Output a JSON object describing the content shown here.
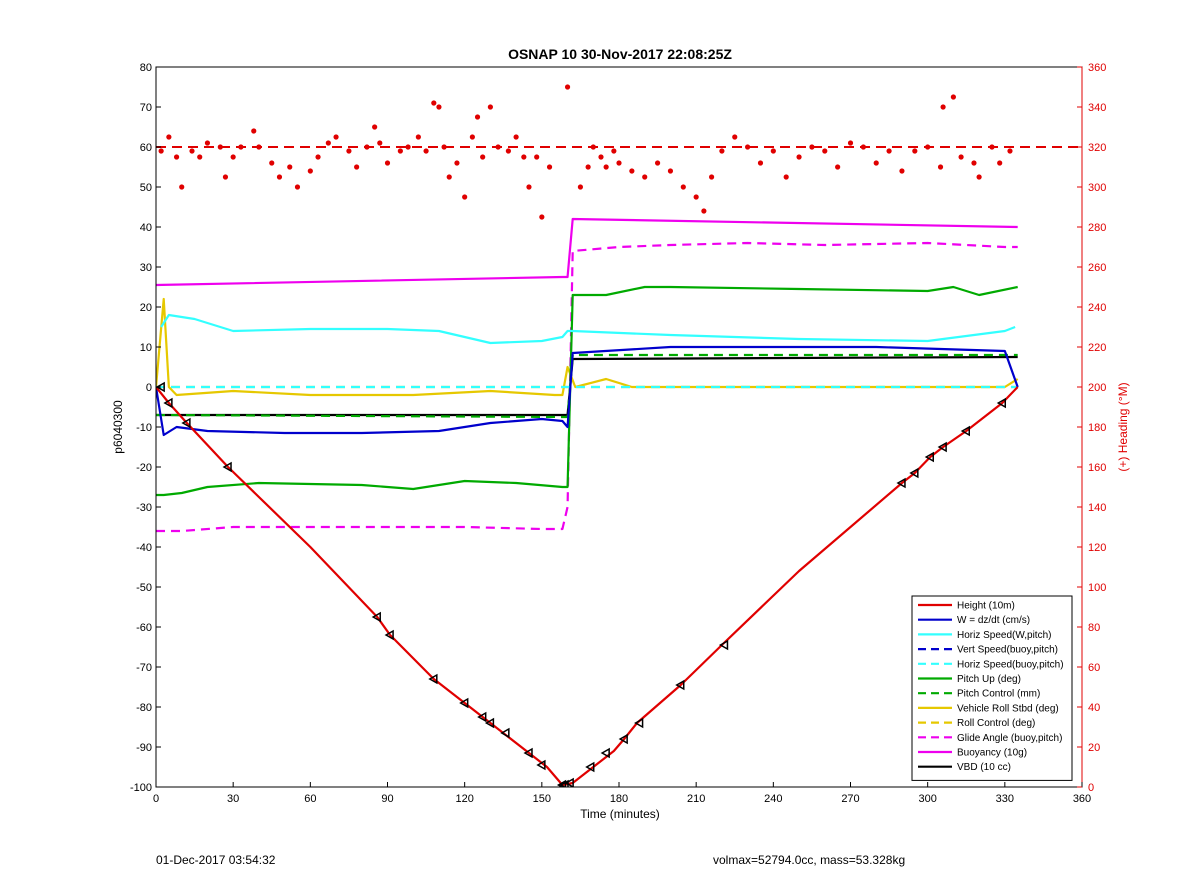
{
  "chart_data": {
    "type": "line",
    "title": "OSNAP 10 30-Nov-2017 22:08:25Z",
    "xlabel": "Time (minutes)",
    "ylabel": "p6040300",
    "y2label": "(+) Heading (°M)",
    "xlim": [
      0,
      360
    ],
    "ylim": [
      -100,
      80
    ],
    "y2lim": [
      0,
      360
    ],
    "xticks": [
      0,
      30,
      60,
      90,
      120,
      150,
      180,
      210,
      240,
      270,
      300,
      330,
      360
    ],
    "yticks": [
      -100,
      -90,
      -80,
      -70,
      -60,
      -50,
      -40,
      -30,
      -20,
      -10,
      0,
      10,
      20,
      30,
      40,
      50,
      60,
      70,
      80
    ],
    "y2ticks": [
      0,
      20,
      40,
      60,
      80,
      100,
      120,
      140,
      160,
      180,
      200,
      220,
      240,
      260,
      280,
      300,
      320,
      340,
      360
    ],
    "grid": false,
    "legend_position": "bottom-right",
    "series": [
      {
        "name": "Height (10m)",
        "color": "#e00000",
        "style": "solid",
        "x": [
          0,
          5,
          12,
          28,
          60,
          86,
          91,
          108,
          120,
          130,
          145,
          152,
          158,
          162,
          170,
          178,
          182,
          187,
          204,
          220,
          250,
          290,
          295,
          301,
          306,
          315,
          329,
          335
        ],
        "y": [
          0,
          -4,
          -9,
          -20,
          -40,
          -57.5,
          -62,
          -73,
          -79,
          -84,
          -91.5,
          -95,
          -99.5,
          -99,
          -95,
          -91,
          -88,
          -84,
          -74.5,
          -64.5,
          -46,
          -24,
          -21.5,
          -17.5,
          -15,
          -11,
          -4,
          0
        ]
      },
      {
        "name": "W = dz/dt (cm/s)",
        "color": "#0000cc",
        "style": "solid",
        "x": [
          0,
          3,
          8,
          20,
          50,
          80,
          110,
          130,
          150,
          158,
          160,
          162,
          200,
          280,
          330,
          335
        ],
        "y": [
          0,
          -12,
          -10,
          -11,
          -11.5,
          -11.5,
          -11,
          -9,
          -8,
          -8.5,
          -10,
          8.5,
          10,
          10,
          9,
          0
        ]
      },
      {
        "name": "Horiz Speed(W,pitch)",
        "color": "#33ffff",
        "style": "solid",
        "x": [
          2,
          5,
          15,
          30,
          60,
          90,
          110,
          130,
          150,
          158,
          160,
          162,
          200,
          250,
          300,
          330,
          334
        ],
        "y": [
          15,
          18,
          17,
          14,
          14.5,
          14.5,
          14,
          11,
          11.5,
          12.5,
          14,
          14,
          13,
          12,
          11.5,
          14,
          15
        ]
      },
      {
        "name": "Vert Speed(buoy,pitch)",
        "color": "#0000cc",
        "style": "dashed",
        "x": [],
        "y": []
      },
      {
        "name": "Horiz Speed(buoy,pitch)",
        "color": "#33ffff",
        "style": "dashed",
        "x": [
          0,
          155,
          160,
          335
        ],
        "y": [
          0,
          0,
          0,
          0
        ]
      },
      {
        "name": "Pitch Up (deg)",
        "color": "#00aa00",
        "style": "solid",
        "x": [
          0,
          3,
          10,
          20,
          40,
          80,
          100,
          105,
          120,
          140,
          158,
          160,
          162,
          175,
          190,
          200,
          250,
          300,
          310,
          320,
          335
        ],
        "y": [
          -27,
          -27,
          -26.5,
          -25,
          -24,
          -24.5,
          -25.5,
          -25,
          -23.5,
          -24,
          -25,
          -25,
          23,
          23,
          25,
          25,
          24.5,
          24,
          25,
          23,
          25
        ]
      },
      {
        "name": "Pitch Control (mm)",
        "color": "#00aa00",
        "style": "dashed",
        "x": [
          0,
          160,
          162,
          335
        ],
        "y": [
          -7,
          -7.5,
          8,
          8
        ]
      },
      {
        "name": "Vehicle Roll Stbd (deg)",
        "color": "#e6c800",
        "style": "solid",
        "x": [
          0,
          3,
          5,
          8,
          30,
          60,
          85,
          90,
          100,
          130,
          155,
          158,
          160,
          163,
          175,
          185,
          200,
          250,
          300,
          330,
          335
        ],
        "y": [
          0,
          22,
          0,
          -2,
          -1,
          -2,
          -2,
          -2,
          -2,
          -1,
          -2,
          -2,
          5,
          0,
          2,
          0,
          0,
          0,
          0,
          0,
          2
        ]
      },
      {
        "name": "Roll Control (deg)",
        "color": "#e6c800",
        "style": "dashed",
        "x": [
          0,
          335
        ],
        "y": [
          0,
          0
        ]
      },
      {
        "name": "Glide Angle (buoy,pitch)",
        "color": "#ee00ee",
        "style": "dashed",
        "x": [
          0,
          10,
          30,
          60,
          90,
          120,
          150,
          158,
          160,
          162,
          180,
          200,
          230,
          260,
          300,
          330,
          335
        ],
        "y": [
          -36,
          -36,
          -35,
          -35,
          -35,
          -35,
          -35.5,
          -35.5,
          -30,
          34,
          35,
          35.5,
          36,
          35.5,
          36,
          35,
          35
        ]
      },
      {
        "name": "Buoyancy (10g)",
        "color": "#ee00ee",
        "style": "solid",
        "x": [
          0,
          158,
          160,
          162,
          335
        ],
        "y": [
          25.5,
          27.5,
          27.5,
          42,
          40
        ]
      },
      {
        "name": "VBD (10 cc)",
        "color": "#000000",
        "style": "solid",
        "x": [
          0,
          158,
          160,
          162,
          335
        ],
        "y": [
          -7,
          -7,
          -7,
          7,
          7.5
        ]
      }
    ],
    "heading_series": {
      "axis": "y2",
      "color": "#e00000",
      "style": "dotted",
      "x": [
        2,
        5,
        8,
        10,
        14,
        17,
        20,
        25,
        27,
        30,
        33,
        38,
        40,
        45,
        48,
        52,
        55,
        60,
        63,
        67,
        70,
        75,
        78,
        82,
        85,
        87,
        90,
        95,
        98,
        102,
        105,
        108,
        110,
        112,
        114,
        117,
        120,
        123,
        125,
        127,
        130,
        133,
        137,
        140,
        143,
        145,
        148,
        150,
        153,
        160,
        165,
        168,
        170,
        173,
        175,
        178,
        180,
        185,
        190,
        195,
        200,
        205,
        210,
        213,
        216,
        220,
        225,
        230,
        235,
        240,
        245,
        250,
        255,
        260,
        265,
        270,
        275,
        280,
        285,
        290,
        295,
        300,
        305,
        306,
        310,
        313,
        318,
        320,
        325,
        328,
        332
      ],
      "y": [
        318,
        325,
        315,
        300,
        318,
        315,
        322,
        320,
        305,
        315,
        320,
        328,
        320,
        312,
        305,
        310,
        300,
        308,
        315,
        322,
        325,
        318,
        310,
        320,
        330,
        322,
        312,
        318,
        320,
        325,
        318,
        342,
        340,
        320,
        305,
        312,
        295,
        325,
        335,
        315,
        340,
        320,
        318,
        325,
        315,
        300,
        315,
        285,
        310,
        350,
        300,
        310,
        320,
        315,
        310,
        318,
        312,
        308,
        305,
        312,
        308,
        300,
        295,
        288,
        305,
        318,
        325,
        320,
        312,
        318,
        305,
        315,
        320,
        318,
        310,
        322,
        320,
        312,
        318,
        308,
        318,
        320,
        310,
        340,
        345,
        315,
        312,
        305,
        320,
        312,
        318
      ]
    },
    "heading_reference": {
      "axis": "y2",
      "value": 320,
      "color": "#e00000",
      "style": "dashed"
    },
    "height_markers": {
      "color": "#000000",
      "x": [
        2,
        5,
        12,
        28,
        86,
        91,
        108,
        120,
        127,
        130,
        136,
        145,
        150,
        158,
        159,
        161,
        169,
        175,
        182,
        188,
        204,
        221,
        290,
        295,
        301,
        306,
        315,
        329
      ],
      "y": [
        0,
        -4,
        -9,
        -20,
        -57.5,
        -62,
        -73,
        -79,
        -82.5,
        -84,
        -86.5,
        -91.5,
        -94.5,
        -99.5,
        -99.5,
        -99,
        -95,
        -91.5,
        -88,
        -84,
        -74.5,
        -64.5,
        -24,
        -21.5,
        -17.5,
        -15,
        -11,
        -4
      ]
    },
    "footer_left": "01-Dec-2017 03:54:32",
    "footer_right": "volmax=52794.0cc, mass=53.328kg"
  }
}
